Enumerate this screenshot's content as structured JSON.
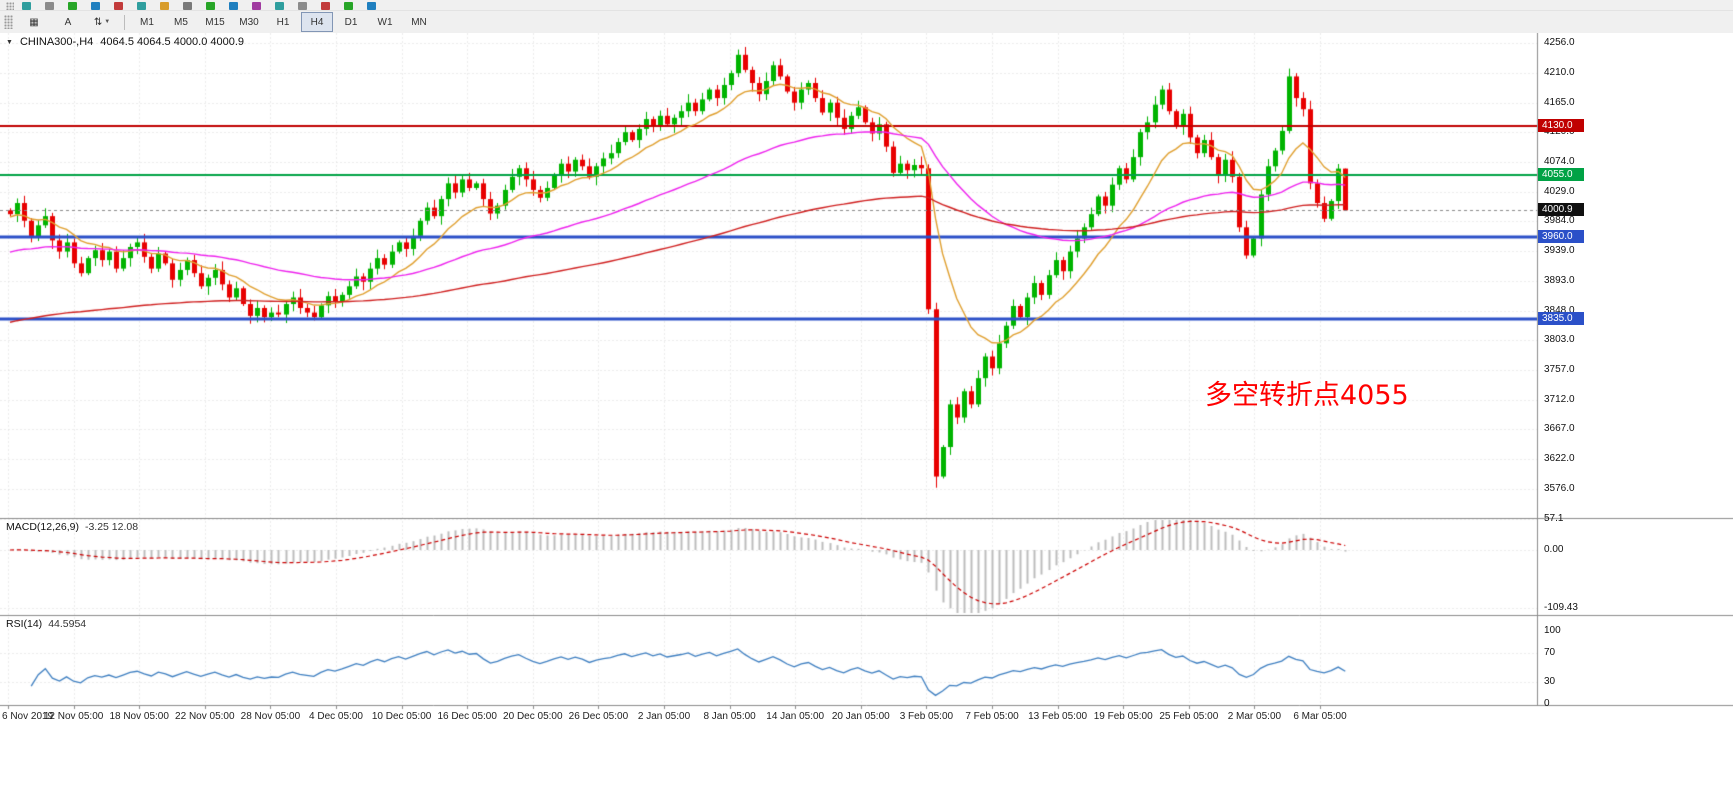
{
  "toolbar": {
    "strip_icon_colors": [
      "#2f9e9e",
      "#8b8b8b",
      "#27a527",
      "#1f7fbf",
      "#c23b3b",
      "#2f9e9e",
      "#d89c2a",
      "#7a7a7a",
      "#27a527",
      "#1f7fbf",
      "#a03ba0",
      "#2f9e9e",
      "#8b8b8b",
      "#c23b3b",
      "#27a527",
      "#1f7fbf"
    ],
    "left_buttons": [
      {
        "name": "grid",
        "glyph": "▦",
        "caret": ""
      },
      {
        "name": "text-a",
        "glyph": "A",
        "caret": ""
      },
      {
        "name": "arrange",
        "glyph": "⇅",
        "caret": "▼"
      }
    ],
    "timeframes": [
      "M1",
      "M5",
      "M15",
      "M30",
      "H1",
      "H4",
      "D1",
      "W1",
      "MN"
    ],
    "active_timeframe": "H4"
  },
  "chart": {
    "symbol": "CHINA300-,H4",
    "ohlc": "4064.5 4064.5 4000.0 4000.9",
    "annotation": {
      "text": "多空转折点4055",
      "color": "#FF0000"
    },
    "levels": [
      {
        "price": 4130.0,
        "label": "4130.0",
        "color": "#C00000",
        "width": 2,
        "style": "solid"
      },
      {
        "price": 4055.0,
        "label": "4055.0",
        "color": "#00A245",
        "width": 2,
        "style": "solid"
      },
      {
        "price": 4000.9,
        "label": "4000.9",
        "color": "#8a8a8a",
        "badge": "#101010",
        "width": 1,
        "style": "dashed"
      },
      {
        "price": 3960.0,
        "label": "3960.0",
        "color": "#2B50C8",
        "width": 3,
        "style": "solid"
      },
      {
        "price": 3835.0,
        "label": "3835.0",
        "color": "#2B50C8",
        "width": 3,
        "style": "solid"
      }
    ]
  },
  "indicators": {
    "macd": {
      "label": "MACD(12,26,9)",
      "values": "-3.25 12.08",
      "axis_labels": [
        "57.1",
        "0.00",
        "-109.43"
      ],
      "histogram_color": "#BDBDBD",
      "signal_color": "#CC0000"
    },
    "rsi": {
      "label": "RSI(14)",
      "value": "44.5954",
      "axis_labels": [
        "100",
        "70",
        "30",
        "0"
      ],
      "line_color": "#3E7FC1",
      "guide_levels": [
        70,
        30
      ]
    }
  },
  "chart_data": {
    "type": "candlestick",
    "symbol": "CHINA300-,H4",
    "timeframe": "H4",
    "title": "CHINA300- H4 candlestick chart with 4130/4055/3960/3835 horizontal levels, 3 moving averages, MACD and RSI sub-panels",
    "price_axis_labels": [
      "4256.0",
      "4210.0",
      "4165.0",
      "4120.0",
      "4074.0",
      "4029.0",
      "3984.0",
      "3939.0",
      "3893.0",
      "3848.0",
      "3803.0",
      "3757.0",
      "3712.0",
      "3667.0",
      "3622.0",
      "3576.0"
    ],
    "time_axis_labels": [
      "6 Nov 2019",
      "12 Nov 05:00",
      "18 Nov 05:00",
      "22 Nov 05:00",
      "28 Nov 05:00",
      "4 Dec 05:00",
      "10 Dec 05:00",
      "16 Dec 05:00",
      "20 Dec 05:00",
      "26 Dec 05:00",
      "2 Jan 05:00",
      "8 Jan 05:00",
      "14 Jan 05:00",
      "20 Jan 05:00",
      "3 Feb 05:00",
      "7 Feb 05:00",
      "13 Feb 05:00",
      "19 Feb 05:00",
      "25 Feb 05:00",
      "2 Mar 05:00",
      "6 Mar 05:00"
    ],
    "price_range": {
      "min": 3576.0,
      "max": 4256.0
    },
    "up_color": "#00B400",
    "down_color": "#E80000",
    "closes": [
      3995,
      4012,
      3985,
      3960,
      3978,
      3992,
      3955,
      3938,
      3952,
      3920,
      3905,
      3928,
      3940,
      3925,
      3938,
      3912,
      3928,
      3945,
      3952,
      3930,
      3912,
      3935,
      3920,
      3895,
      3910,
      3925,
      3905,
      3885,
      3898,
      3910,
      3888,
      3868,
      3882,
      3858,
      3840,
      3852,
      3838,
      3845,
      3842,
      3858,
      3868,
      3852,
      3845,
      3838,
      3856,
      3870,
      3862,
      3872,
      3885,
      3900,
      3892,
      3912,
      3928,
      3918,
      3938,
      3952,
      3942,
      3962,
      3985,
      4005,
      3992,
      4018,
      4042,
      4028,
      4048,
      4035,
      4042,
      4018,
      3996,
      4008,
      4032,
      4052,
      4065,
      4048,
      4032,
      4020,
      4035,
      4055,
      4072,
      4060,
      4078,
      4068,
      4052,
      4068,
      4080,
      4088,
      4105,
      4120,
      4108,
      4125,
      4140,
      4128,
      4145,
      4132,
      4142,
      4152,
      4165,
      4152,
      4170,
      4185,
      4172,
      4192,
      4210,
      4238,
      4215,
      4195,
      4178,
      4198,
      4222,
      4205,
      4182,
      4165,
      4185,
      4195,
      4172,
      4150,
      4165,
      4142,
      4125,
      4145,
      4158,
      4135,
      4118,
      4132,
      4098,
      4058,
      4072,
      4062,
      4070,
      4065,
      3850,
      3595,
      3640,
      3705,
      3685,
      3725,
      3705,
      3745,
      3778,
      3760,
      3798,
      3825,
      3855,
      3838,
      3868,
      3890,
      3872,
      3902,
      3925,
      3908,
      3938,
      3958,
      3975,
      3995,
      4022,
      4008,
      4040,
      4065,
      4048,
      4082,
      4120,
      4135,
      4162,
      4185,
      4152,
      4128,
      4148,
      4112,
      4088,
      4108,
      4082,
      4055,
      4078,
      4052,
      3975,
      3932,
      3958,
      4025,
      4068,
      4092,
      4122,
      4205,
      4172,
      4155,
      4042,
      4012,
      3988,
      4015,
      4064.5,
      4000.9
    ],
    "crash_low": 3578,
    "last_candle": {
      "open": 4064.5,
      "high": 4064.5,
      "low": 4000.0,
      "close": 4000.9
    },
    "moving_averages": [
      {
        "name": "fast",
        "period": 12,
        "seed": 3990,
        "color": "#E0A030"
      },
      {
        "name": "medium",
        "period": 55,
        "seed": 3935,
        "color": "#EE22EE"
      },
      {
        "name": "slow",
        "period": 150,
        "seed": 3828,
        "color": "#D02020"
      }
    ]
  },
  "palette": {
    "grid": "#DBDBDB",
    "pane_border": "#8C8C8C",
    "axis_text": "#111111",
    "toolbar_bg": "#F0F0F0",
    "chart_bg": "#FFFFFF"
  }
}
